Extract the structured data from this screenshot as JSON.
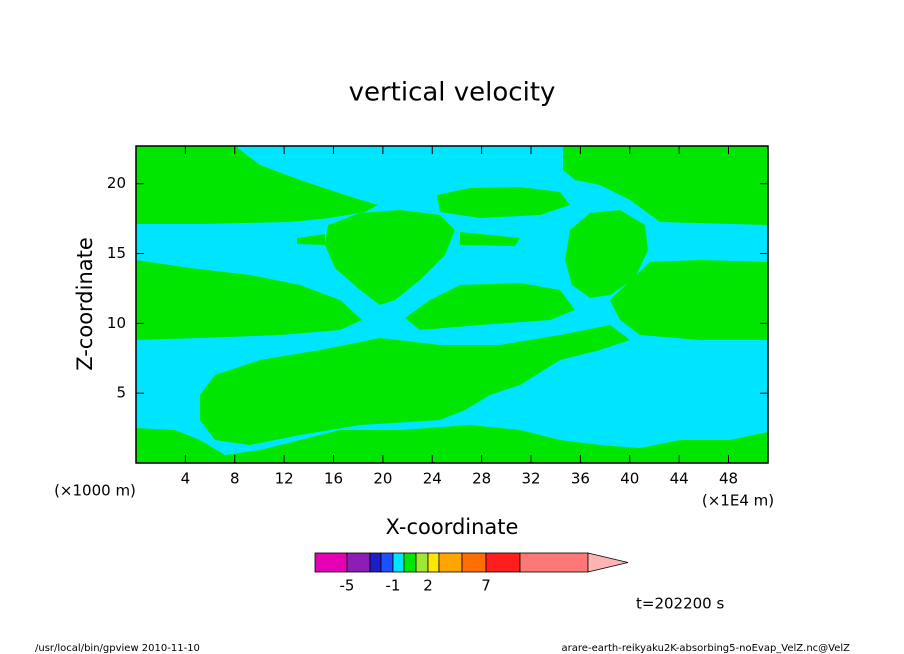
{
  "chart_data": {
    "type": "contour",
    "title": "vertical velocity",
    "x_label": "X-coordinate",
    "y_label": "Z-coordinate",
    "x_unit": "(×1E4 m)",
    "y_unit": "(×1000 m)",
    "xlim": [
      0,
      51.2
    ],
    "ylim": [
      0,
      22.7
    ],
    "xticks": [
      4,
      8,
      12,
      16,
      20,
      24,
      28,
      32,
      36,
      40,
      44,
      48
    ],
    "yticks": [
      5,
      10,
      15,
      20
    ],
    "background_color": "#00e5ff",
    "region_color": "#00e600",
    "colorbar": {
      "colors": [
        "#e600b4",
        "#8c1eb4",
        "#1e1ec8",
        "#1e50ff",
        "#00e5ff",
        "#00e600",
        "#a0e632",
        "#ffe600",
        "#ffa500",
        "#ff6e00",
        "#ff1e1e",
        "#ff7878",
        "#ffb4b4"
      ],
      "ticks": [
        -5,
        -1,
        2,
        7
      ]
    },
    "time_label": "t=202200 s",
    "footer_left": "/usr/local/bin/gpview  2010-11-10",
    "footer_right": "arare-earth-reikyaku2K-absorbing5-noEvap_VelZ.nc@VelZ"
  }
}
